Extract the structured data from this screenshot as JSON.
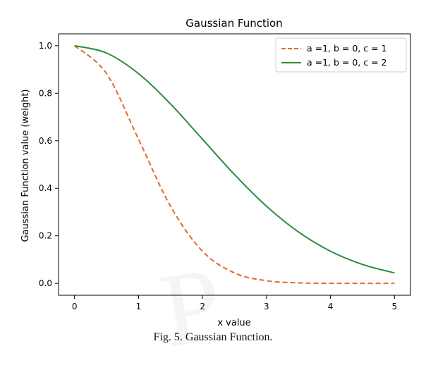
{
  "chart_data": {
    "type": "line",
    "title": "Gaussian Function",
    "xlabel": "x value",
    "ylabel": "Gaussian Function value (weight)",
    "xlim": [
      -0.25,
      5.25
    ],
    "ylim": [
      -0.05,
      1.05
    ],
    "xticks": [
      0,
      1,
      2,
      3,
      4,
      5
    ],
    "yticks": [
      0.0,
      0.2,
      0.4,
      0.6,
      0.8,
      1.0
    ],
    "xtick_labels": [
      "0",
      "1",
      "2",
      "3",
      "4",
      "5"
    ],
    "ytick_labels": [
      "0.0",
      "0.2",
      "0.4",
      "0.6",
      "0.8",
      "1.0"
    ],
    "legend_position": "top-right",
    "grid": false,
    "x": [
      0,
      0.5,
      1,
      1.5,
      2,
      2.5,
      3,
      3.5,
      4,
      4.5,
      5
    ],
    "series": [
      {
        "name": "a =1, b = 0, c = 1",
        "color": "#dd6b2e",
        "line_style": "dashed",
        "values": [
          1.0,
          0.8825,
          0.6065,
          0.3247,
          0.1353,
          0.0439,
          0.0111,
          0.0022,
          0.0003,
          0.0,
          0.0
        ]
      },
      {
        "name": "a =1, b = 0, c = 2",
        "color": "#2e8b3a",
        "line_style": "solid",
        "values": [
          1.0,
          0.9692,
          0.8825,
          0.7548,
          0.6065,
          0.4578,
          0.3247,
          0.2163,
          0.1353,
          0.0796,
          0.0439
        ]
      }
    ]
  },
  "caption": "Fig. 5.  Gaussian Function."
}
